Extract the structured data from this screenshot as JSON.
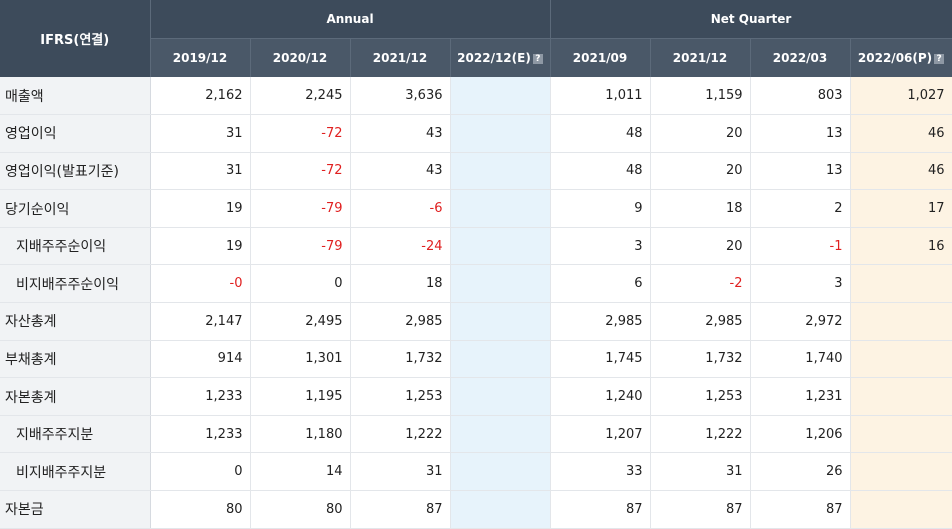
{
  "header": {
    "label": "IFRS(연결)",
    "annual": "Annual",
    "quarter": "Net Quarter",
    "help_glyph": "?",
    "annual_periods": [
      "2019/12",
      "2020/12",
      "2021/12",
      "2022/12(E)"
    ],
    "quarter_periods": [
      "2021/09",
      "2021/12",
      "2022/03",
      "2022/06(P)"
    ]
  },
  "rows": [
    {
      "label": "매출액",
      "sub": false,
      "values": [
        "2,162",
        "2,245",
        "3,636",
        "",
        "1,011",
        "1,159",
        "803",
        "1,027"
      ]
    },
    {
      "label": "영업이익",
      "sub": false,
      "values": [
        "31",
        "-72",
        "43",
        "",
        "48",
        "20",
        "13",
        "46"
      ]
    },
    {
      "label": "영업이익(발표기준)",
      "sub": false,
      "values": [
        "31",
        "-72",
        "43",
        "",
        "48",
        "20",
        "13",
        "46"
      ]
    },
    {
      "label": "당기순이익",
      "sub": false,
      "values": [
        "19",
        "-79",
        "-6",
        "",
        "9",
        "18",
        "2",
        "17"
      ]
    },
    {
      "label": "지배주주순이익",
      "sub": true,
      "values": [
        "19",
        "-79",
        "-24",
        "",
        "3",
        "20",
        "-1",
        "16"
      ]
    },
    {
      "label": "비지배주주순이익",
      "sub": true,
      "values": [
        "-0",
        "0",
        "18",
        "",
        "6",
        "-2",
        "3",
        ""
      ]
    },
    {
      "label": "자산총계",
      "sub": false,
      "values": [
        "2,147",
        "2,495",
        "2,985",
        "",
        "2,985",
        "2,985",
        "2,972",
        ""
      ]
    },
    {
      "label": "부채총계",
      "sub": false,
      "values": [
        "914",
        "1,301",
        "1,732",
        "",
        "1,745",
        "1,732",
        "1,740",
        ""
      ]
    },
    {
      "label": "자본총계",
      "sub": false,
      "values": [
        "1,233",
        "1,195",
        "1,253",
        "",
        "1,240",
        "1,253",
        "1,231",
        ""
      ]
    },
    {
      "label": "지배주주지분",
      "sub": true,
      "values": [
        "1,233",
        "1,180",
        "1,222",
        "",
        "1,207",
        "1,222",
        "1,206",
        ""
      ]
    },
    {
      "label": "비지배주주지분",
      "sub": true,
      "values": [
        "0",
        "14",
        "31",
        "",
        "33",
        "31",
        "26",
        ""
      ]
    },
    {
      "label": "자본금",
      "sub": false,
      "values": [
        "80",
        "80",
        "87",
        "",
        "87",
        "87",
        "87",
        ""
      ]
    }
  ],
  "colors": {
    "header_bg": "#3d4b5b",
    "label_bg": "#f1f3f5",
    "estimate_bg": "#e7f3fb",
    "provisional_bg": "#fdf3e3",
    "negative": "#e02020"
  }
}
